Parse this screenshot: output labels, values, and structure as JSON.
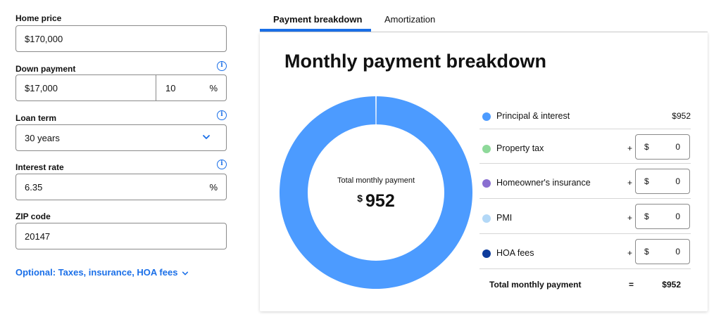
{
  "form": {
    "home_price": {
      "label": "Home price",
      "value": "$170,000"
    },
    "down_payment": {
      "label": "Down payment",
      "value": "$17,000",
      "percent": "10",
      "percent_symbol": "%"
    },
    "loan_term": {
      "label": "Loan term",
      "value": "30 years"
    },
    "interest_rate": {
      "label": "Interest rate",
      "value": "6.35",
      "percent_symbol": "%"
    },
    "zip_code": {
      "label": "ZIP code",
      "value": "20147"
    },
    "optional_link": "Optional: Taxes, insurance, HOA fees"
  },
  "tabs": [
    {
      "label": "Payment breakdown",
      "active": true
    },
    {
      "label": "Amortization",
      "active": false
    }
  ],
  "card": {
    "title": "Monthly payment breakdown",
    "center_label": "Total monthly payment",
    "center_currency": "$",
    "center_amount": "952"
  },
  "breakdown": {
    "rows": [
      {
        "name": "Principal & interest",
        "color": "#4c9bff",
        "amount": "$952"
      },
      {
        "name": "Property tax",
        "color": "#8ed99a",
        "plus": "+",
        "currency": "$",
        "value": "0"
      },
      {
        "name": "Homeowner's insurance",
        "color": "#8a6fd1",
        "plus": "+",
        "currency": "$",
        "value": "0"
      },
      {
        "name": "PMI",
        "color": "#b3d8f7",
        "plus": "+",
        "currency": "$",
        "value": "0"
      },
      {
        "name": "HOA fees",
        "color": "#0e3c9c",
        "plus": "+",
        "currency": "$",
        "value": "0"
      }
    ],
    "total": {
      "name": "Total monthly payment",
      "equals": "=",
      "amount": "$952"
    }
  },
  "chart_data": {
    "type": "pie",
    "categories": [
      "Principal & interest",
      "Property tax",
      "Homeowner's insurance",
      "PMI",
      "HOA fees"
    ],
    "values": [
      952,
      0,
      0,
      0,
      0
    ],
    "colors": [
      "#4c9bff",
      "#8ed99a",
      "#8a6fd1",
      "#b3d8f7",
      "#0e3c9c"
    ],
    "title": "",
    "donut": true
  },
  "colors": {
    "accent": "#1a6fe8",
    "donut_primary": "#4c9bff"
  }
}
